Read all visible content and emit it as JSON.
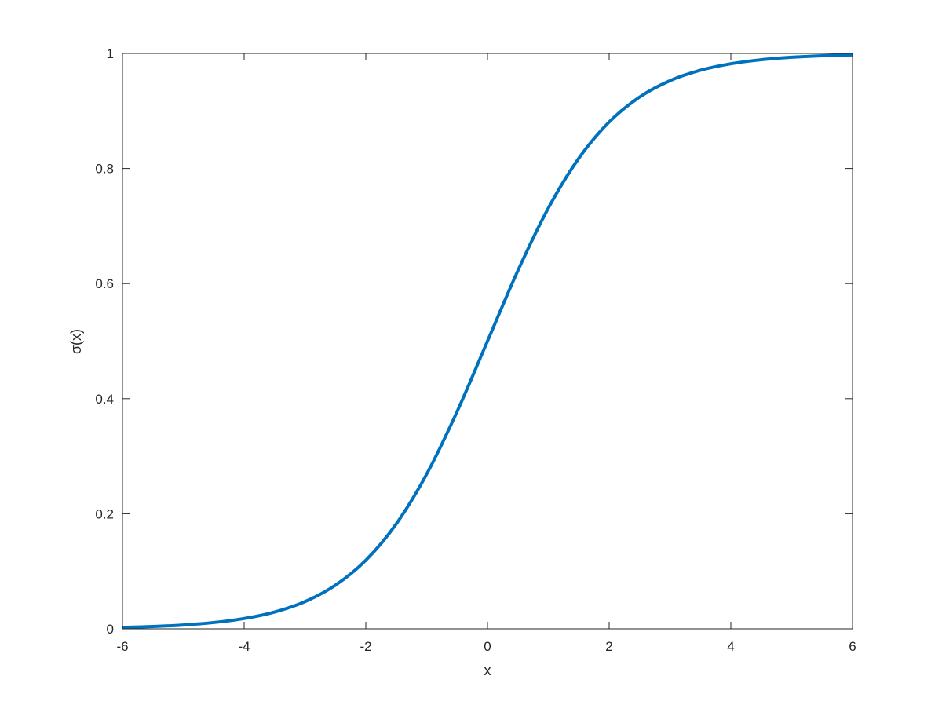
{
  "chart_data": {
    "type": "line",
    "title": "",
    "xlabel": "x",
    "ylabel": "σ(x)",
    "xlim": [
      -6,
      6
    ],
    "ylim": [
      0,
      1
    ],
    "grid": false,
    "xticks": [
      "-6",
      "-4",
      "-2",
      "0",
      "2",
      "4",
      "6"
    ],
    "yticks": [
      "0",
      "0.2",
      "0.4",
      "0.6",
      "0.8",
      "1"
    ],
    "series": [
      {
        "color": "#0072BD",
        "x": [
          -6,
          -5.5,
          -5,
          -4.5,
          -4,
          -3.5,
          -3,
          -2.5,
          -2,
          -1.5,
          -1,
          -0.5,
          0,
          0.5,
          1,
          1.5,
          2,
          2.5,
          3,
          3.5,
          4,
          4.5,
          5,
          5.5,
          6
        ],
        "y": [
          0.0025,
          0.0041,
          0.0067,
          0.011,
          0.018,
          0.0293,
          0.0474,
          0.0759,
          0.1192,
          0.1824,
          0.2689,
          0.3775,
          0.5,
          0.6225,
          0.7311,
          0.8176,
          0.8808,
          0.9241,
          0.9526,
          0.9707,
          0.982,
          0.989,
          0.9933,
          0.9959,
          0.9975
        ]
      }
    ]
  }
}
